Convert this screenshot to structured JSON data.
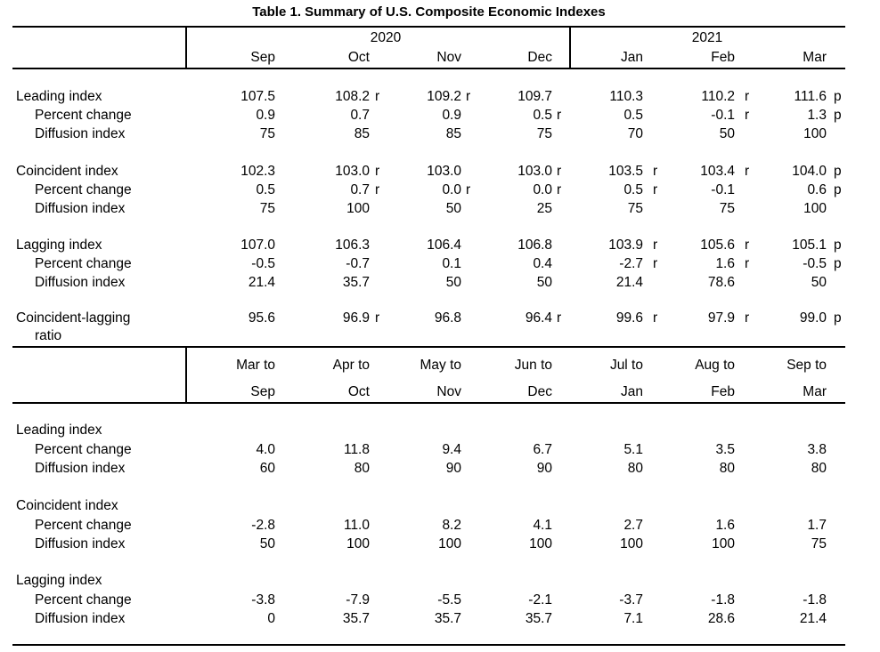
{
  "title": "Table 1. Summary of U.S. Composite Economic Indexes",
  "top": {
    "years": [
      "2020",
      "2021"
    ],
    "months": [
      "Sep",
      "Oct",
      "Nov",
      "Dec",
      "Jan",
      "Feb",
      "Mar"
    ],
    "groups": [
      {
        "rows": [
          {
            "label": "Leading index",
            "values": [
              "107.5",
              "108.2",
              "109.2",
              "109.7",
              "110.3",
              "110.2",
              "111.6"
            ],
            "flags": [
              "",
              "r",
              "r",
              "",
              "",
              "r",
              "p"
            ]
          },
          {
            "label": "Percent change",
            "values": [
              "0.9",
              "0.7",
              "0.9",
              "0.5",
              "0.5",
              "-0.1",
              "1.3"
            ],
            "flags": [
              "",
              "",
              "",
              "r",
              "",
              "r",
              "p"
            ]
          },
          {
            "label": "Diffusion index",
            "values": [
              "75",
              "85",
              "85",
              "75",
              "70",
              "50",
              "100"
            ],
            "flags": [
              "",
              "",
              "",
              "",
              "",
              "",
              ""
            ]
          }
        ]
      },
      {
        "rows": [
          {
            "label": "Coincident index",
            "values": [
              "102.3",
              "103.0",
              "103.0",
              "103.0",
              "103.5",
              "103.4",
              "104.0"
            ],
            "flags": [
              "",
              "r",
              "",
              "r",
              "r",
              "r",
              "p"
            ]
          },
          {
            "label": "Percent change",
            "values": [
              "0.5",
              "0.7",
              "0.0",
              "0.0",
              "0.5",
              "-0.1",
              "0.6"
            ],
            "flags": [
              "",
              "r",
              "r",
              "r",
              "r",
              "",
              "p"
            ]
          },
          {
            "label": "Diffusion index",
            "values": [
              "75",
              "100",
              "50",
              "25",
              "75",
              "75",
              "100"
            ],
            "flags": [
              "",
              "",
              "",
              "",
              "",
              "",
              ""
            ]
          }
        ]
      },
      {
        "rows": [
          {
            "label": "Lagging index",
            "values": [
              "107.0",
              "106.3",
              "106.4",
              "106.8",
              "103.9",
              "105.6",
              "105.1"
            ],
            "flags": [
              "",
              "",
              "",
              "",
              "r",
              "r",
              "p"
            ]
          },
          {
            "label": "Percent change",
            "values": [
              "-0.5",
              "-0.7",
              "0.1",
              "0.4",
              "-2.7",
              "1.6",
              "-0.5"
            ],
            "flags": [
              "",
              "",
              "",
              "",
              "r",
              "r",
              "p"
            ]
          },
          {
            "label": "Diffusion index",
            "values": [
              "21.4",
              "35.7",
              "50",
              "50",
              "21.4",
              "78.6",
              "50"
            ],
            "flags": [
              "",
              "",
              "",
              "",
              "",
              "",
              ""
            ]
          }
        ]
      },
      {
        "rows": [
          {
            "label": "Coincident-lagging",
            "label2": "ratio",
            "values": [
              "95.6",
              "96.9",
              "96.8",
              "96.4",
              "99.6",
              "97.9",
              "99.0"
            ],
            "flags": [
              "",
              "r",
              "",
              "r",
              "r",
              "r",
              "p"
            ]
          }
        ]
      }
    ]
  },
  "bottom": {
    "periods_from": [
      "Mar to",
      "Apr to",
      "May to",
      "Jun to",
      "Jul to",
      "Aug to",
      "Sep to"
    ],
    "periods_to": [
      "Sep",
      "Oct",
      "Nov",
      "Dec",
      "Jan",
      "Feb",
      "Mar"
    ],
    "groups": [
      {
        "heading": "Leading index",
        "rows": [
          {
            "label": "Percent change",
            "values": [
              "4.0",
              "11.8",
              "9.4",
              "6.7",
              "5.1",
              "3.5",
              "3.8"
            ]
          },
          {
            "label": "Diffusion index",
            "values": [
              "60",
              "80",
              "90",
              "90",
              "80",
              "80",
              "80"
            ]
          }
        ]
      },
      {
        "heading": "Coincident index",
        "rows": [
          {
            "label": "Percent change",
            "values": [
              "-2.8",
              "11.0",
              "8.2",
              "4.1",
              "2.7",
              "1.6",
              "1.7"
            ]
          },
          {
            "label": "Diffusion index",
            "values": [
              "50",
              "100",
              "100",
              "100",
              "100",
              "100",
              "75"
            ]
          }
        ]
      },
      {
        "heading": "Lagging index",
        "rows": [
          {
            "label": "Percent change",
            "values": [
              "-3.8",
              "-7.9",
              "-5.5",
              "-2.1",
              "-3.7",
              "-1.8",
              "-1.8"
            ]
          },
          {
            "label": "Diffusion index",
            "values": [
              "0",
              "35.7",
              "35.7",
              "35.7",
              "7.1",
              "28.6",
              "21.4"
            ]
          }
        ]
      }
    ]
  }
}
